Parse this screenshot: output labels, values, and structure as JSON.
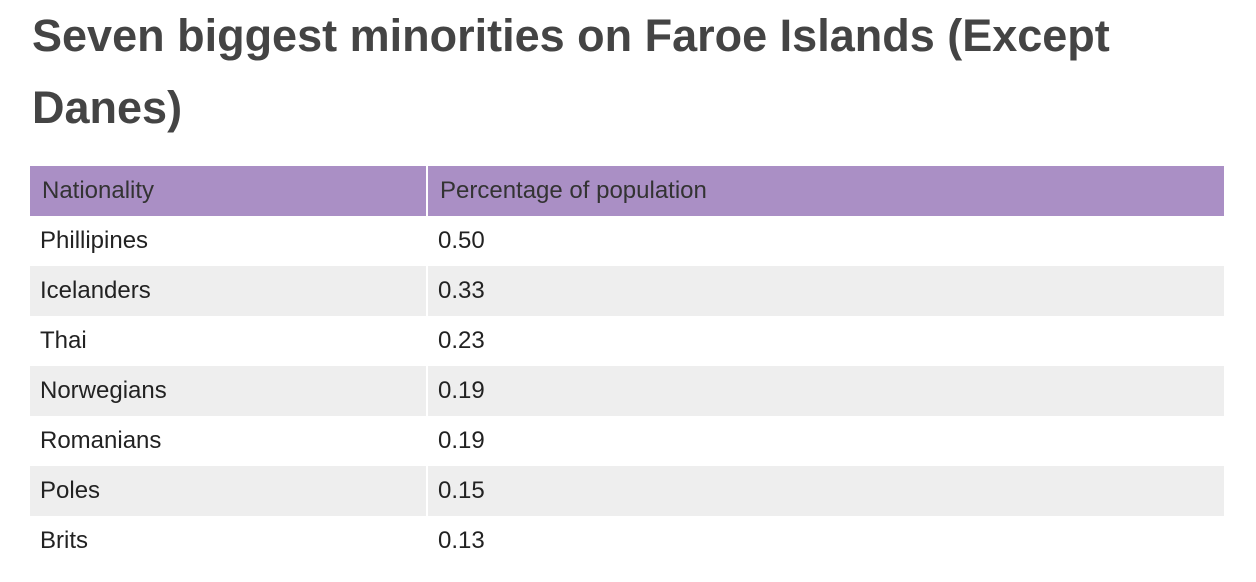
{
  "colors": {
    "header_background": "#aa8fc5",
    "stripe_background": "#eeeeee",
    "title_color": "#444444"
  },
  "chart_data": {
    "type": "table",
    "title": "Seven biggest minorities on Faroe Islands (Except Danes)",
    "columns": [
      "Nationality",
      "Percentage of population"
    ],
    "rows": [
      [
        "Phillipines",
        "0.50"
      ],
      [
        "Icelanders",
        "0.33"
      ],
      [
        "Thai",
        "0.23"
      ],
      [
        "Norwegians",
        "0.19"
      ],
      [
        "Romanians",
        "0.19"
      ],
      [
        "Poles",
        "0.15"
      ],
      [
        "Brits",
        "0.13"
      ]
    ]
  }
}
